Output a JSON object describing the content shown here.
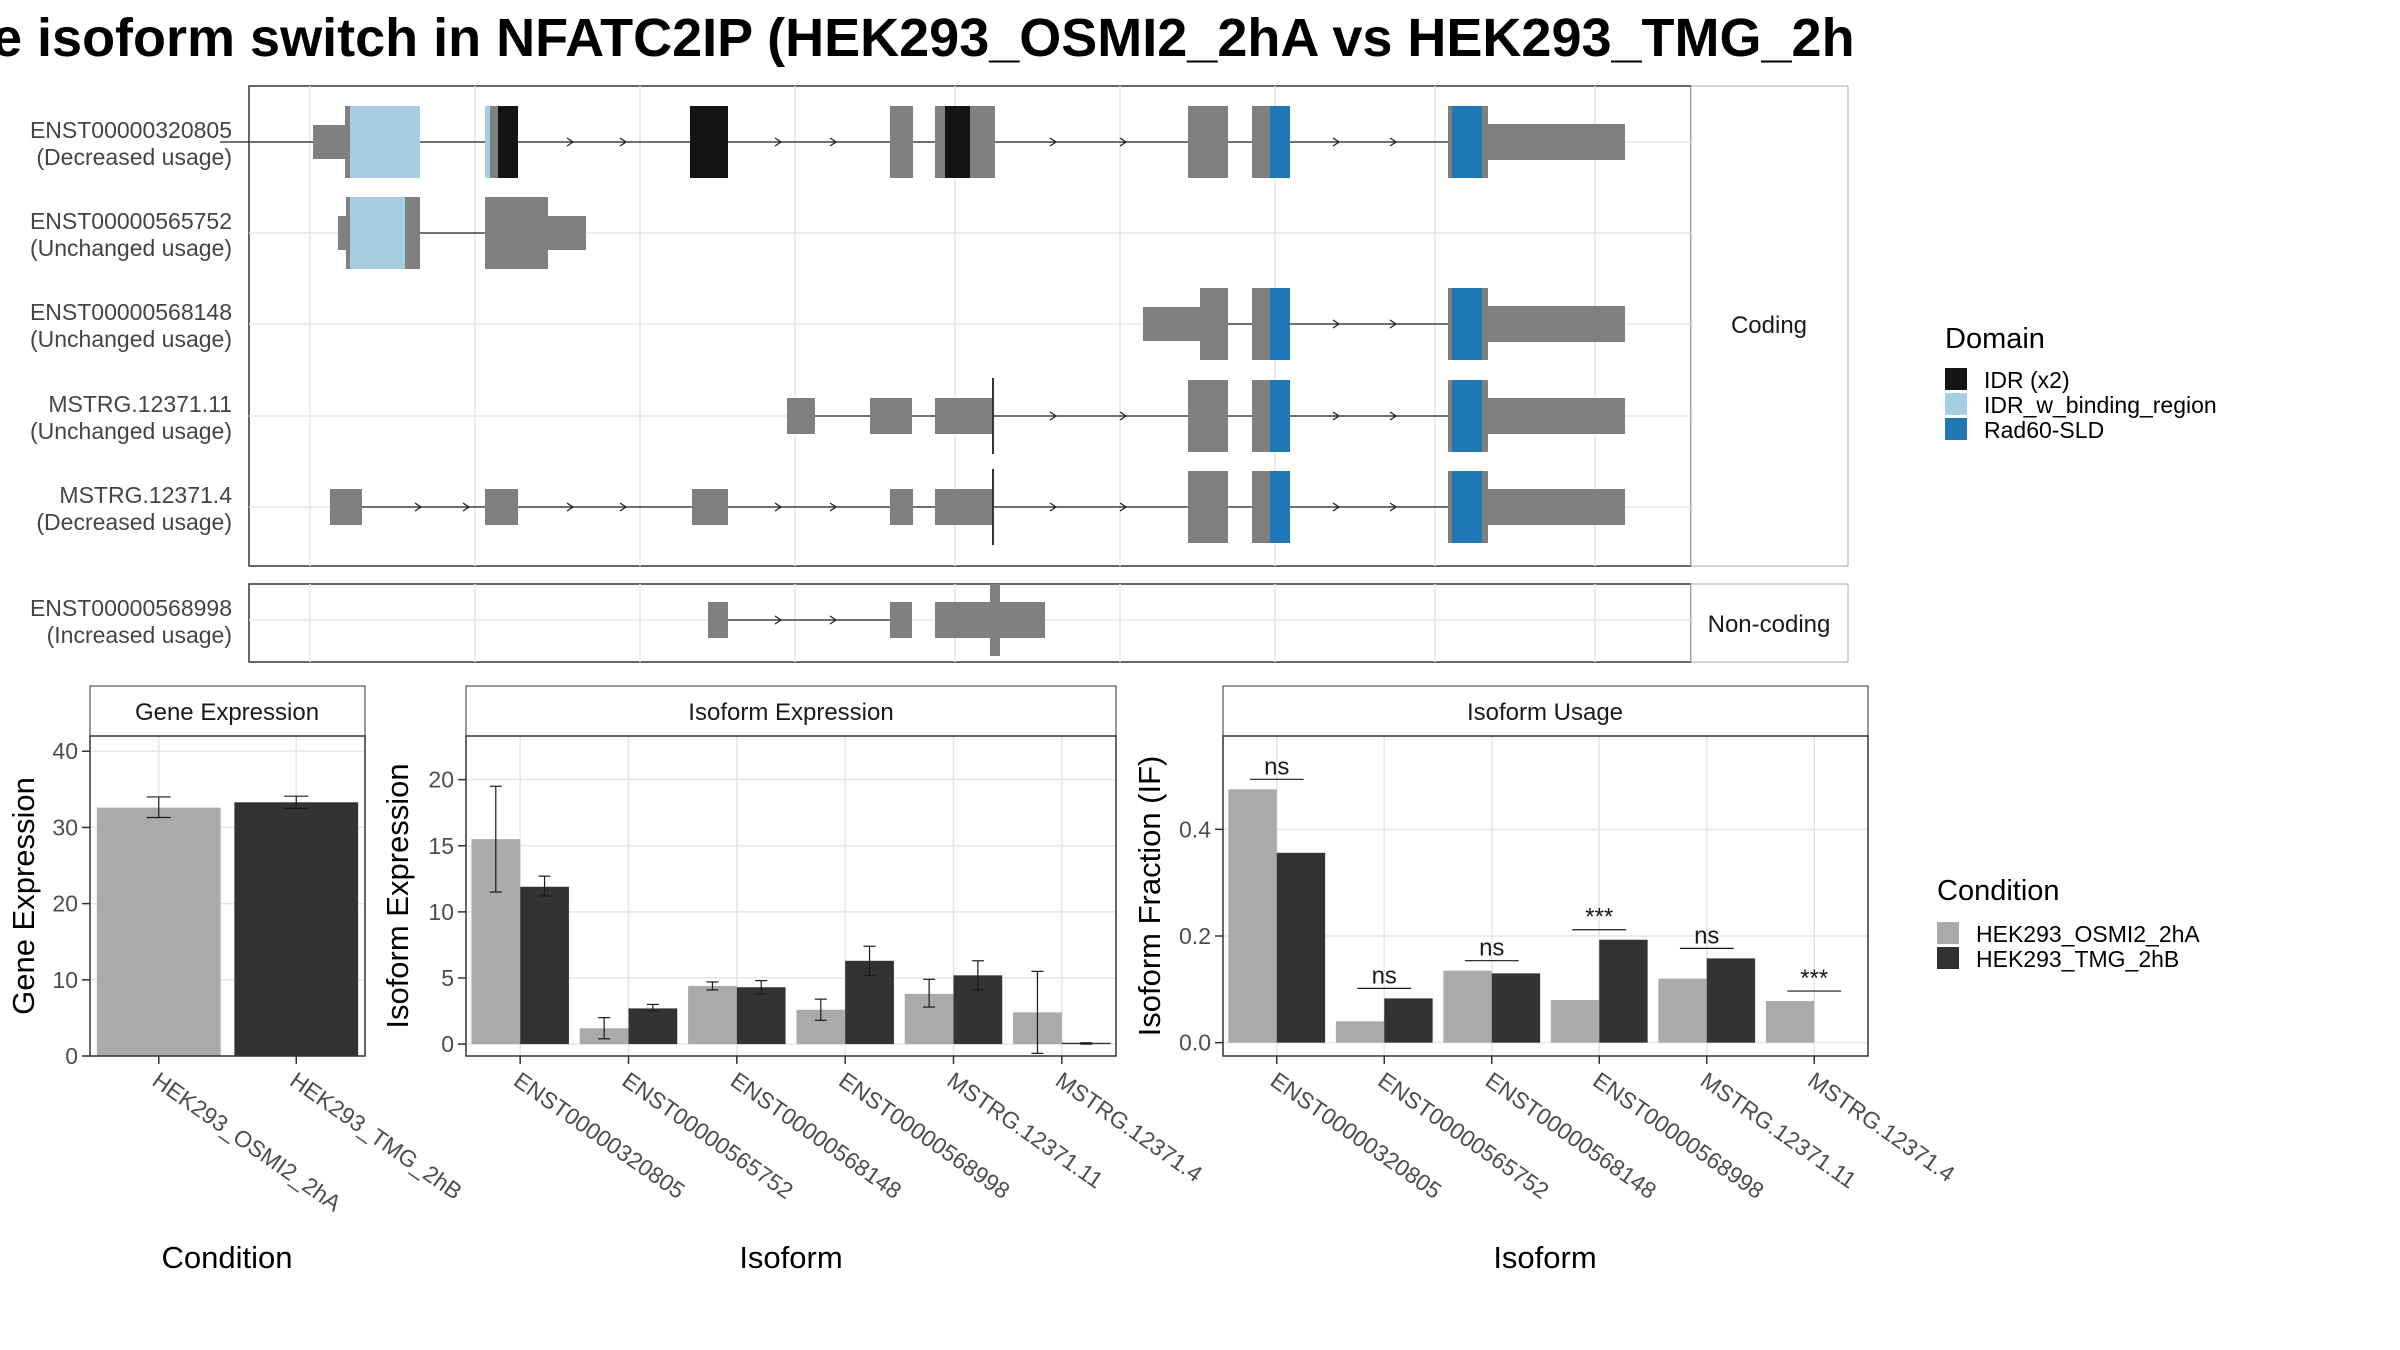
{
  "title": "e isoform switch in NFATC2IP (HEK293_OSMI2_2hA vs HEK293_TMG_2h",
  "colors": {
    "exon": "#808080",
    "idr": "#141414",
    "idr_binding": "#a6cee3",
    "rad60": "#1f78b4",
    "cond_a": "#aaaaaa",
    "cond_b": "#333333",
    "panel_border": "#333333",
    "strip_border": "#aaaaaa",
    "strip_fill": "#ffffff",
    "grid": "#e6e6e6"
  },
  "structure": {
    "transcripts": [
      {
        "id": "ENST00000320805",
        "usage": "(Decreased usage)"
      },
      {
        "id": "ENST00000565752",
        "usage": "(Unchanged usage)"
      },
      {
        "id": "ENST00000568148",
        "usage": "(Unchanged usage)"
      },
      {
        "id": "MSTRG.12371.11",
        "usage": "(Unchanged usage)"
      },
      {
        "id": "MSTRG.12371.4",
        "usage": "(Decreased usage)"
      },
      {
        "id": "ENST00000568998",
        "usage": "(Increased usage)"
      }
    ],
    "facets": {
      "coding": "Coding",
      "noncoding": "Non-coding"
    }
  },
  "legend_domain": {
    "title": "Domain",
    "items": [
      {
        "label": "IDR (x2)",
        "color": "#141414"
      },
      {
        "label": "IDR_w_binding_region",
        "color": "#a6cee3"
      },
      {
        "label": "Rad60-SLD",
        "color": "#1f78b4"
      }
    ]
  },
  "legend_condition": {
    "title": "Condition",
    "items": [
      {
        "label": "HEK293_OSMI2_2hA",
        "color": "#aaaaaa"
      },
      {
        "label": "HEK293_TMG_2hB",
        "color": "#333333"
      }
    ]
  },
  "chart_data": [
    {
      "type": "bar",
      "title": "Gene Expression",
      "xlabel": "Condition",
      "ylabel": "Gene Expression",
      "ylim": [
        0,
        42
      ],
      "yticks": [
        0,
        10,
        20,
        30,
        40
      ],
      "categories": [
        "HEK293_OSMI2_2hA",
        "HEK293_TMG_2hB"
      ],
      "values": [
        32.6,
        33.3
      ],
      "error_low": [
        31.3,
        32.5
      ],
      "error_high": [
        34.0,
        34.1
      ]
    },
    {
      "type": "bar",
      "title": "Isoform Expression",
      "xlabel": "Isoform",
      "ylabel": "Isoform Expression",
      "ylim": [
        -0.9,
        23.3
      ],
      "yticks": [
        0,
        5,
        10,
        15,
        20
      ],
      "categories": [
        "ENST00000320805",
        "ENST00000565752",
        "ENST00000568148",
        "ENST00000568998",
        "MSTRG.12371.11",
        "MSTRG.12371.4"
      ],
      "series": [
        {
          "name": "HEK293_OSMI2_2hA",
          "values": [
            15.5,
            1.2,
            4.4,
            2.6,
            3.8,
            2.4
          ],
          "error_low": [
            11.5,
            0.4,
            4.1,
            1.8,
            2.8,
            -0.7
          ],
          "error_high": [
            19.5,
            2.0,
            4.7,
            3.4,
            4.9,
            5.5
          ]
        },
        {
          "name": "HEK293_TMG_2hB",
          "values": [
            11.9,
            2.7,
            4.3,
            6.3,
            5.2,
            0.1
          ],
          "error_low": [
            11.2,
            2.5,
            3.8,
            5.2,
            4.1,
            0.0
          ],
          "error_high": [
            12.7,
            3.0,
            4.8,
            7.4,
            6.3,
            0.1
          ]
        }
      ]
    },
    {
      "type": "bar",
      "title": "Isoform Usage",
      "xlabel": "Isoform",
      "ylabel": "Isoform Fraction (IF)",
      "ylim": [
        -0.025,
        0.575
      ],
      "yticks": [
        0.0,
        0.2,
        0.4
      ],
      "ytick_labels": [
        "0.0",
        "0.2",
        "0.4"
      ],
      "categories": [
        "ENST00000320805",
        "ENST00000565752",
        "ENST00000568148",
        "ENST00000568998",
        "MSTRG.12371.11",
        "MSTRG.12371.4"
      ],
      "series": [
        {
          "name": "HEK293_OSMI2_2hA",
          "values": [
            0.475,
            0.04,
            0.135,
            0.08,
            0.12,
            0.078
          ]
        },
        {
          "name": "HEK293_TMG_2hB",
          "values": [
            0.356,
            0.083,
            0.13,
            0.193,
            0.158,
            0.0
          ]
        }
      ],
      "significance": [
        "ns",
        "ns",
        "ns",
        "***",
        "ns",
        "***"
      ]
    }
  ]
}
